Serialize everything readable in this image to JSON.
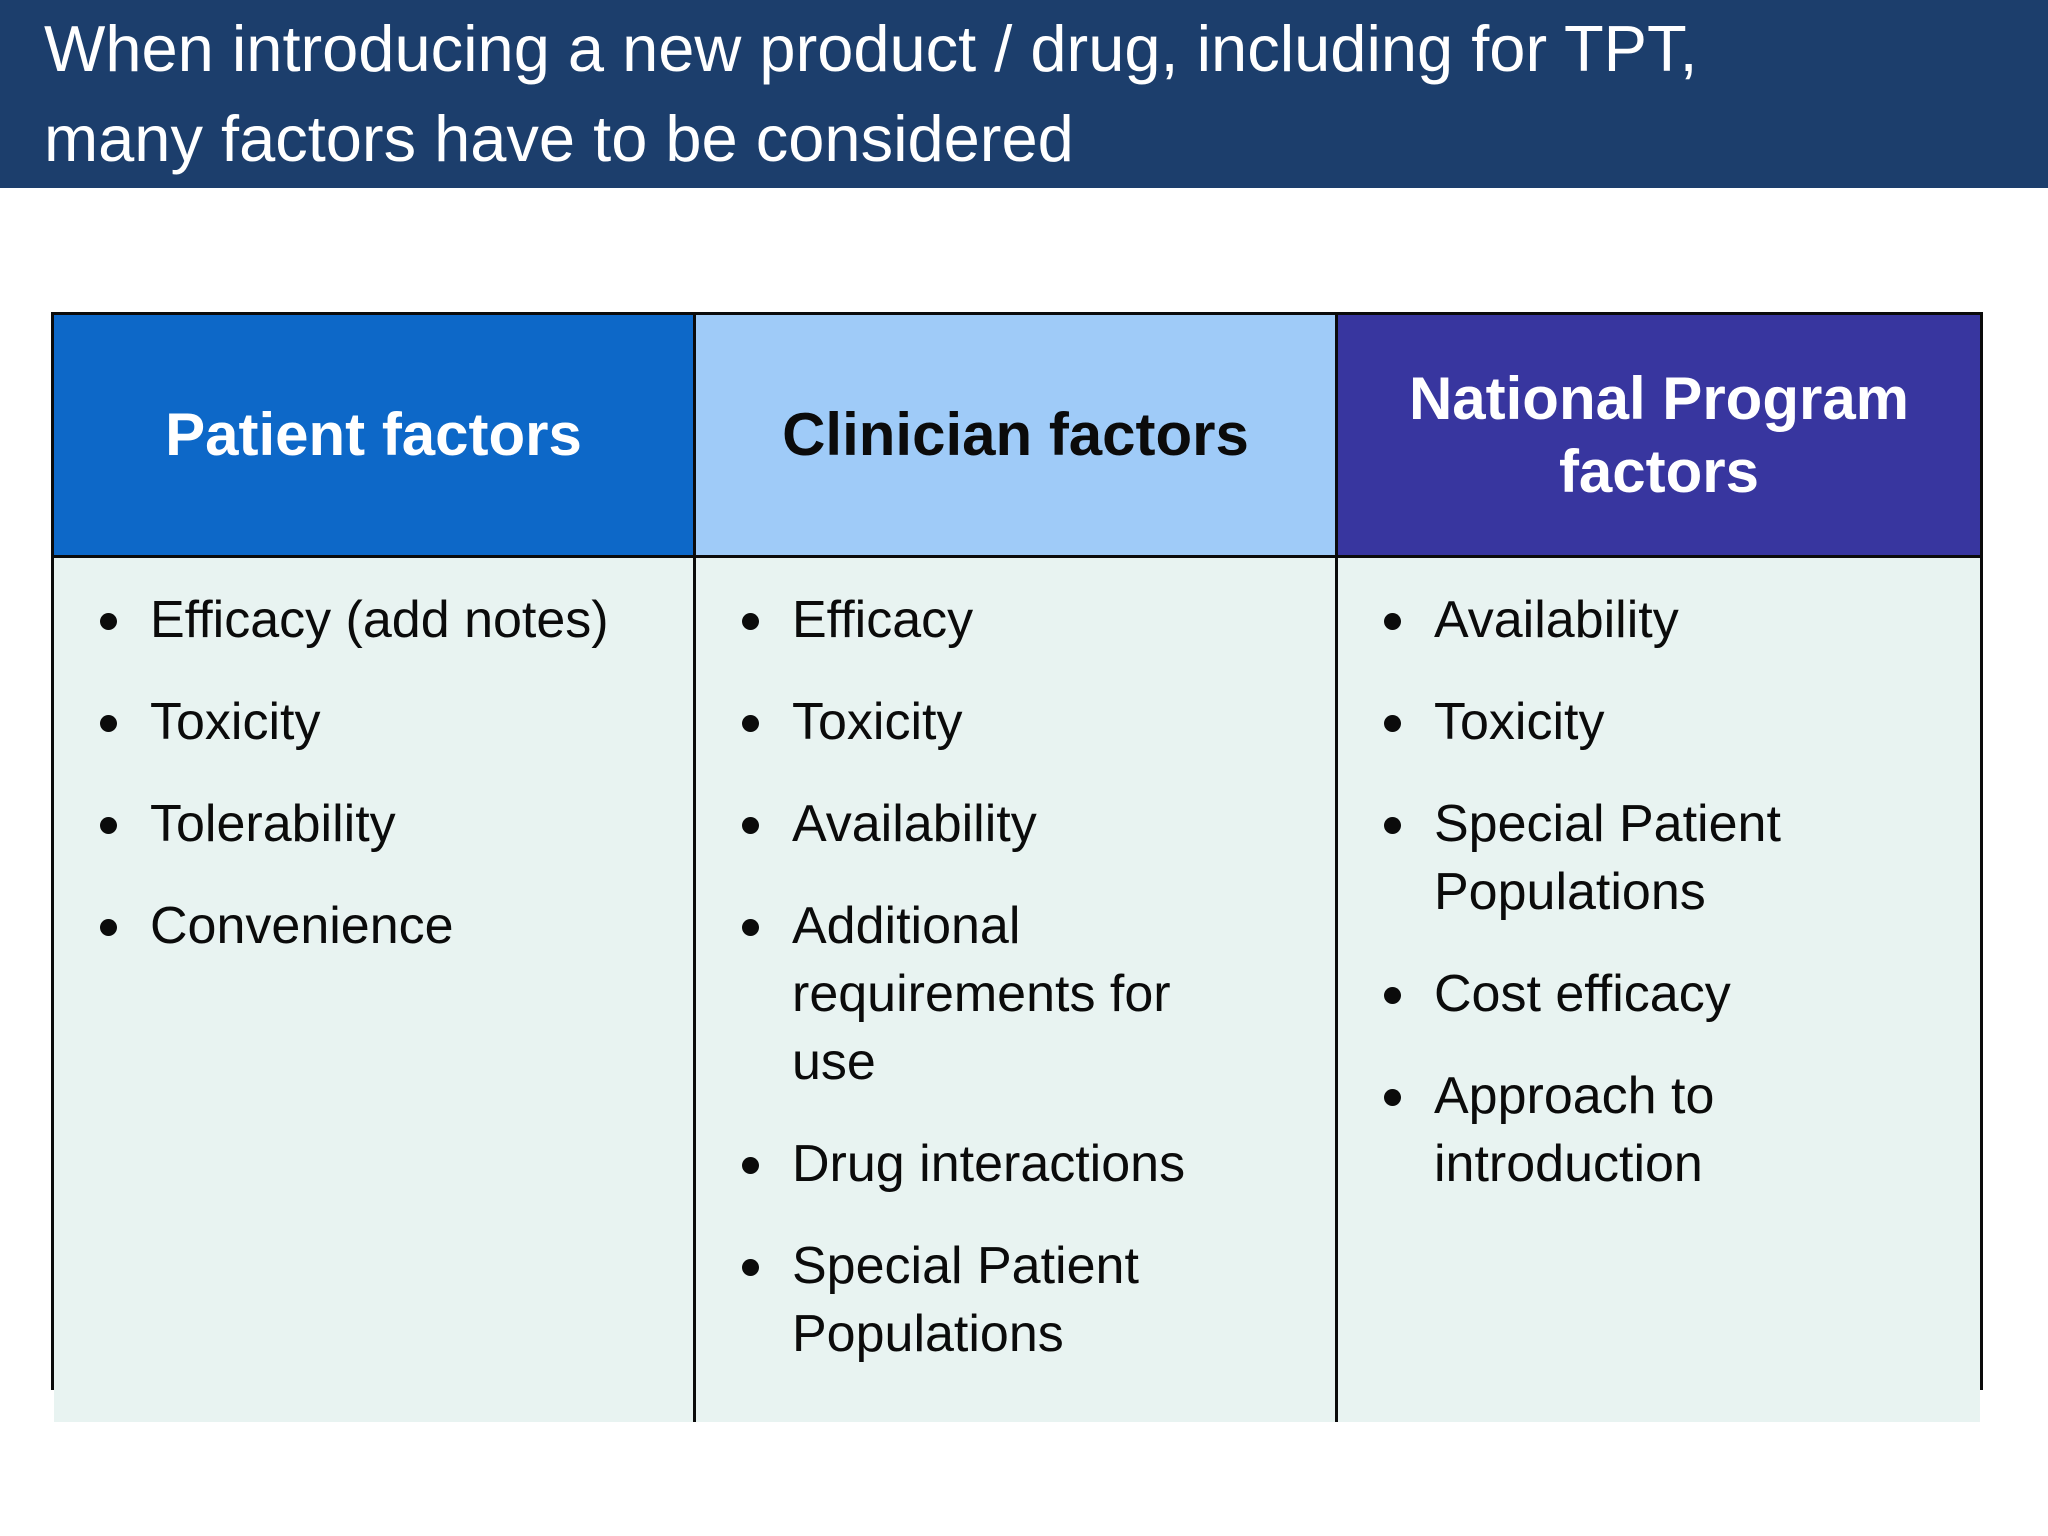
{
  "slide": {
    "title": {
      "line1": "When introducing a new product / drug, including for TPT,",
      "line2": "many factors have to be considered"
    },
    "table": {
      "columns": [
        {
          "header": "Patient factors",
          "header_bg": "#0D68C8",
          "header_text_color": "#FFFFFF",
          "items": [
            "Efficacy (add notes)",
            "Toxicity",
            "Tolerability",
            "Convenience"
          ]
        },
        {
          "header": "Clinician factors",
          "header_bg": "#9FCBF8",
          "header_text_color": "#0B0B0B",
          "items": [
            "Efficacy",
            "Toxicity",
            "Availability",
            "Additional requirements for use",
            "Drug interactions",
            "Special Patient Populations"
          ]
        },
        {
          "header": "National Program factors",
          "header_bg": "#38369F",
          "header_text_color": "#FFFFFF",
          "items": [
            "Availability",
            "Toxicity",
            "Special Patient Populations",
            "Cost efficacy",
            "Approach to introduction"
          ]
        }
      ]
    },
    "colors": {
      "title_band_bg": "#1C3E6C",
      "title_text": "#FFFFFF",
      "body_cell_bg": "#E8F3F1",
      "border": "#0B0B0B",
      "page_bg": "#FFFFFF",
      "bullet": "#0B0B0B"
    }
  }
}
